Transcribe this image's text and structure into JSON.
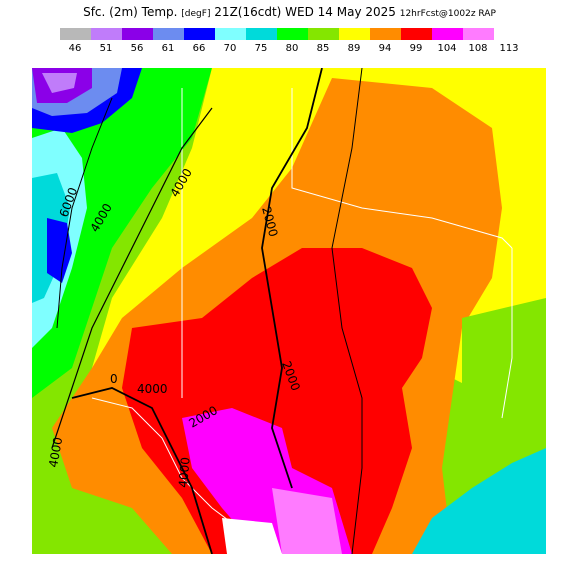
{
  "header": {
    "title_main": "Sfc. (2m) Temp.",
    "title_units": "[degF]",
    "title_time": "21Z(16cdt) WED 14 May 2025",
    "title_model": "12hrFcst@1002z RAP"
  },
  "legend": {
    "values": [
      "46",
      "51",
      "56",
      "61",
      "66",
      "70",
      "75",
      "80",
      "85",
      "89",
      "94",
      "99",
      "104",
      "108",
      "113"
    ],
    "colors": [
      "#b8b8b8",
      "#c07cfa",
      "#8b00e8",
      "#6c8cf0",
      "#0000ff",
      "#7fffff",
      "#00dada",
      "#00ff00",
      "#84e600",
      "#ffff00",
      "#ff8c00",
      "#ff0000",
      "#ff00ff",
      "#ff7bff"
    ]
  },
  "map": {
    "contour_labels": {
      "c1": "6000",
      "c2": "4000",
      "c3": "4000",
      "c4": "2000",
      "c5": "2000",
      "c6": "4000",
      "c7": "2000",
      "c8": "4000",
      "c9": "4000",
      "c10": "0"
    }
  }
}
